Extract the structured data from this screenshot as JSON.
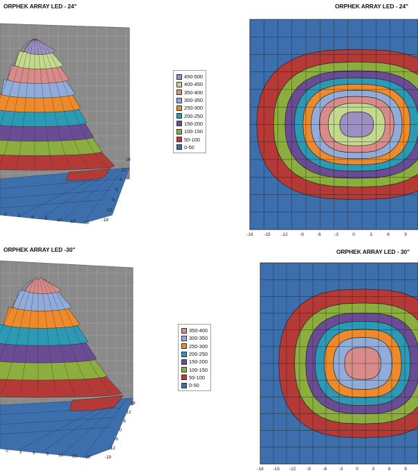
{
  "colors": {
    "0-50": "#3d6fad",
    "50-100": "#b33a36",
    "100-150": "#8cae3e",
    "150-200": "#6a4c95",
    "200-250": "#2d9ab5",
    "250-300": "#ec8a2c",
    "300-350": "#91acd9",
    "350-400": "#d98b8a",
    "400-450": "#c3d98e",
    "450-500": "#9d8fc2"
  },
  "chart_data": [
    {
      "type": "surface-3d",
      "title": "ORPHEK ARRAY LED - 24\"",
      "bands": [
        "0-50",
        "50-100",
        "100-150",
        "150-200",
        "200-250",
        "250-300",
        "300-350",
        "350-400",
        "400-450",
        "450-500"
      ],
      "x_ticks": [
        "0",
        "3",
        "6",
        "9",
        "12",
        "15",
        "18"
      ],
      "depth_ticks": [
        "18",
        "12",
        "6",
        "0",
        "-6",
        "-12",
        "-18"
      ],
      "zlim": [
        0,
        500
      ],
      "peak": 490
    },
    {
      "type": "contour",
      "title": "ORPHEK ARRAY LED - 24\"",
      "legend": [
        "450-500",
        "400-450",
        "350-400",
        "300-350",
        "250-300",
        "200-250",
        "150-200",
        "100-150",
        "50-100",
        "0-50"
      ],
      "x_ticks": [
        "-18",
        "-15",
        "-12",
        "-9",
        "-6",
        "-3",
        "0",
        "3",
        "6",
        "9"
      ],
      "xlim": [
        -18,
        18
      ],
      "ylim": [
        -18,
        18
      ],
      "peak": 480
    },
    {
      "type": "surface-3d",
      "title": "ORPHEK ARRAY LED -30\"",
      "bands": [
        "0-50",
        "50-100",
        "100-150",
        "150-200",
        "200-250",
        "250-300",
        "300-350",
        "350-400"
      ],
      "x_ticks": [
        "0",
        "3",
        "6",
        "9",
        "12",
        "15",
        "18"
      ],
      "depth_ticks": [
        "18",
        "12",
        "6",
        "0",
        "-6",
        "-12",
        "-18"
      ],
      "zlim": [
        0,
        400
      ],
      "peak": 385
    },
    {
      "type": "contour",
      "title": "ORPHEK ARRAY LED - 30\"",
      "legend": [
        "350-400",
        "300-350",
        "250-300",
        "200-250",
        "150-200",
        "100-150",
        "50-100",
        "0-50"
      ],
      "x_ticks": [
        "-18",
        "-15",
        "-12",
        "-9",
        "-6",
        "-3",
        "0",
        "3",
        "6",
        "9"
      ],
      "xlim": [
        -18,
        18
      ],
      "ylim": [
        -18,
        18
      ],
      "peak": 385
    }
  ]
}
